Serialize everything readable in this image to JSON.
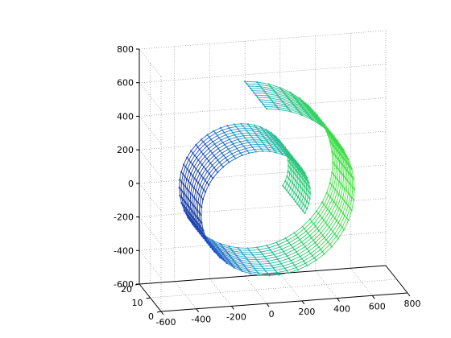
{
  "chart_data": {
    "type": "surface-mesh-3d",
    "title": "",
    "xlabel": "",
    "ylabel": "",
    "zlabel": "",
    "grid": true,
    "x_range": [
      -600,
      800
    ],
    "y_range": [
      0,
      20
    ],
    "z_range": [
      -600,
      800
    ],
    "x_ticks": [
      "-600",
      "-400",
      "-200",
      "0",
      "200",
      "400",
      "600",
      "800"
    ],
    "y_ticks": [
      "0",
      "10",
      "20"
    ],
    "z_ticks": [
      "-600",
      "-400",
      "-200",
      "0",
      "200",
      "400",
      "600",
      "800"
    ],
    "surface": {
      "shape": "spiral-band",
      "center_x": 0,
      "center_z": 0,
      "width_y": [
        0,
        20
      ],
      "angle_start_deg": 90,
      "angle_sweep_deg": 470,
      "radius_start": 560,
      "radius_end": 230,
      "columns": 66,
      "rows": 12,
      "colormap": [
        "#0a1250",
        "#1f4fc8",
        "#2aa8c8",
        "#28c878",
        "#40e040"
      ]
    }
  }
}
